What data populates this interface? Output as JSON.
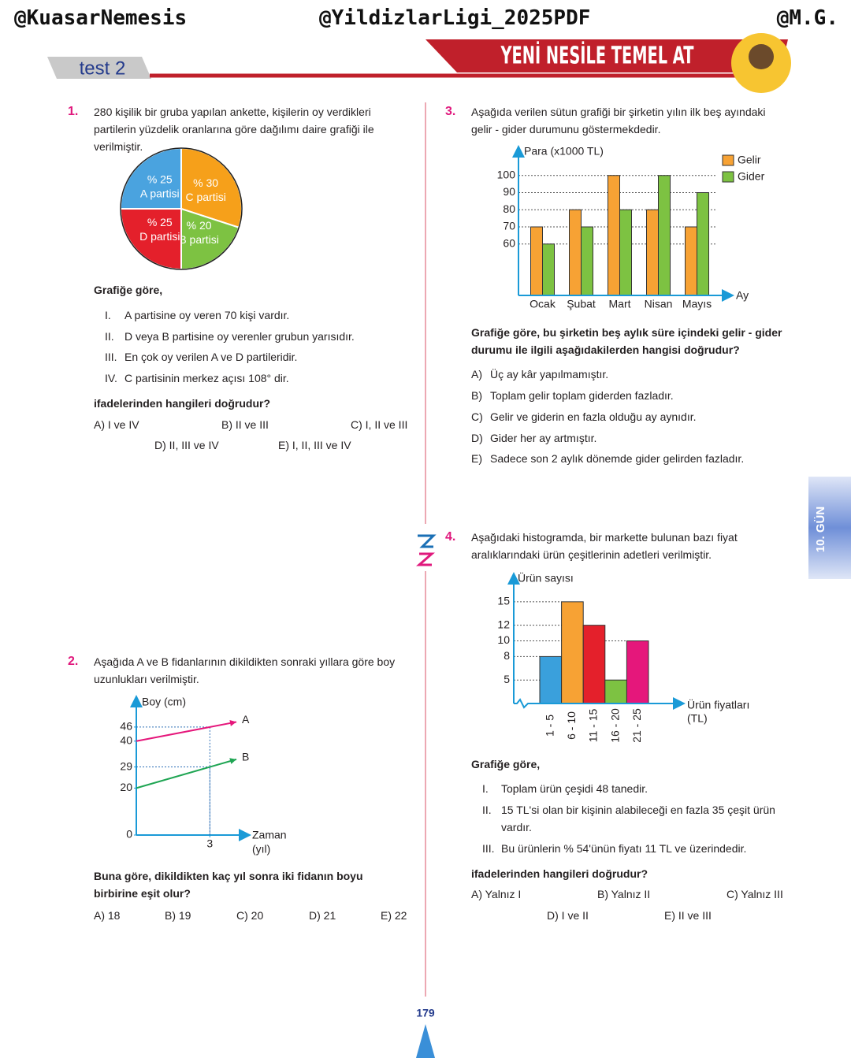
{
  "header": {
    "watermarks": [
      "@KuasarNemesis",
      "@YildizlarLigi_2025PDF",
      "@M.G."
    ],
    "test": "test 2",
    "banner": "YENİ NESİLE TEMEL AT",
    "day_tab": "10. GÜN",
    "page_number": "179"
  },
  "questions": [
    {
      "number": "1.",
      "text": "280 kişilik bir gruba yapılan ankette, kişilerin oy verdikleri partilerin yüzdelik oranlarına göre dağılımı daire grafiği ile verilmiştir.",
      "chart_data": {
        "type": "pie",
        "categories": [
          "A partisi",
          "C partisi",
          "B partisi",
          "D partisi"
        ],
        "values": [
          25,
          30,
          20,
          25
        ],
        "value_labels": [
          "% 25",
          "% 30",
          "% 20",
          "% 25"
        ],
        "colors": [
          "#4aa3df",
          "#f6a01a",
          "#7dc242",
          "#e4202b"
        ]
      },
      "lead": "Grafiğe göre,",
      "statements": [
        {
          "num": "I.",
          "text": "A partisine oy veren 70 kişi vardır."
        },
        {
          "num": "II.",
          "text": "D veya B partisine oy verenler grubun yarısıdır."
        },
        {
          "num": "III.",
          "text": "En çok oy verilen A ve D partileridir."
        },
        {
          "num": "IV.",
          "text": "C partisinin merkez açısı 108° dir."
        }
      ],
      "prompt": "ifadelerinden hangileri doğrudur?",
      "options": [
        "A) I ve IV",
        "B) II ve III",
        "C) I, II ve III",
        "D) II, III ve IV",
        "E) I, II, III ve IV"
      ]
    },
    {
      "number": "2.",
      "text": "Aşağıda A ve B fidanlarının dikildikten sonraki yıllara göre boy uzunlukları verilmiştir.",
      "chart_data": {
        "type": "line",
        "y_label": "Boy (cm)",
        "x_label": "Zaman",
        "x_unit": "(yıl)",
        "x": [
          0,
          3
        ],
        "series": [
          {
            "name": "A",
            "color": "#e5177b",
            "values": [
              40,
              46
            ]
          },
          {
            "name": "B",
            "color": "#1fa553",
            "values": [
              20,
              29
            ]
          }
        ],
        "xlim": [
          0,
          4.5
        ],
        "xticks": [
          3
        ],
        "ylim": [
          0,
          52
        ],
        "yticks": [
          0,
          20,
          29,
          40,
          46
        ]
      },
      "prompt": "Buna göre, dikildikten kaç yıl sonra iki fidanın boyu birbirine eşit olur?",
      "options": [
        "A) 18",
        "B) 19",
        "C) 20",
        "D) 21",
        "E) 22"
      ]
    },
    {
      "number": "3.",
      "text": "Aşağıda verilen sütun grafiği bir şirketin yılın ilk beş ayındaki gelir - gider durumunu göstermekdedir.",
      "chart_data": {
        "type": "bar",
        "y_label": "Para (x1000 TL)",
        "x_label": "Ay",
        "categories": [
          "Ocak",
          "Şubat",
          "Mart",
          "Nisan",
          "Mayıs"
        ],
        "series": [
          {
            "name": "Gelir",
            "color": "#f7a234",
            "values": [
              70,
              80,
              100,
              80,
              70
            ]
          },
          {
            "name": "Gider",
            "color": "#7dc242",
            "values": [
              60,
              70,
              80,
              100,
              90
            ]
          }
        ],
        "ylim": [
          30,
          110
        ],
        "yticks": [
          60,
          70,
          80,
          90,
          100
        ],
        "grid": true,
        "legend": "top-right"
      },
      "prompt": "Grafiğe göre, bu şirketin beş aylık süre içindeki gelir - gider durumu ile ilgili aşağıdakilerden hangisi doğrudur?",
      "options": [
        {
          "letter": "A)",
          "text": "Üç ay kâr yapılmamıştır."
        },
        {
          "letter": "B)",
          "text": "Toplam gelir toplam giderden fazladır."
        },
        {
          "letter": "C)",
          "text": "Gelir ve giderin en fazla olduğu ay aynıdır."
        },
        {
          "letter": "D)",
          "text": "Gider her ay artmıştır."
        },
        {
          "letter": "E)",
          "text": "Sadece son 2 aylık dönemde gider gelirden fazladır."
        }
      ]
    },
    {
      "number": "4.",
      "text": "Aşağıdaki histogramda, bir markette bulunan bazı fiyat aralıklarındaki ürün çeşitlerinin adetleri verilmiştir.",
      "chart_data": {
        "type": "histogram",
        "y_label": "Ürün sayısı",
        "x_label": "Ürün fiyatları",
        "x_unit": "(TL)",
        "categories": [
          "1 - 5",
          "6 - 10",
          "11 - 15",
          "16 - 20",
          "21 - 25"
        ],
        "values": [
          8,
          15,
          12,
          5,
          10
        ],
        "colors": [
          "#3aa0dc",
          "#f7a234",
          "#e4202b",
          "#7dc242",
          "#e5177b"
        ],
        "ylim": [
          2,
          17
        ],
        "yticks": [
          5,
          8,
          10,
          12,
          15
        ]
      },
      "lead": "Grafiğe göre,",
      "statements": [
        {
          "num": "I.",
          "text": "Toplam ürün çeşidi 48 tanedir."
        },
        {
          "num": "II.",
          "text": "15 TL'si olan bir kişinin alabileceği en fazla 35 çeşit ürün vardır."
        },
        {
          "num": "III.",
          "text": "Bu ürünlerin % 54'ünün fiyatı 11 TL ve üzerindedir."
        }
      ],
      "prompt": "ifadelerinden hangileri doğrudur?",
      "options": [
        "A) Yalnız I",
        "B) Yalnız II",
        "C) Yalnız III",
        "D) I ve II",
        "E) II ve III"
      ]
    }
  ]
}
